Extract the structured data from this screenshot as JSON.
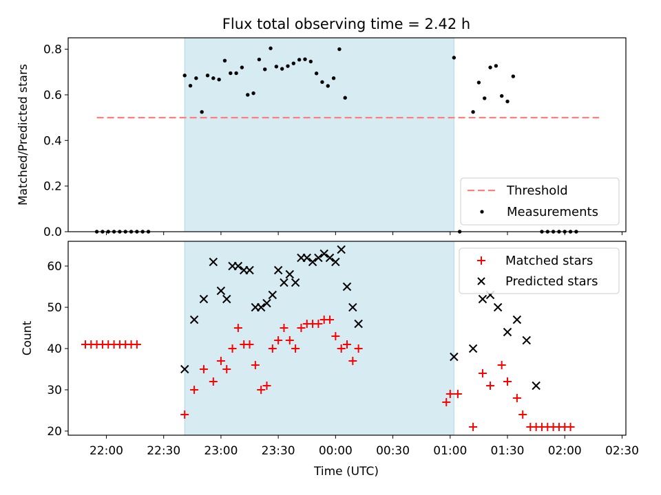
{
  "chart_data": [
    {
      "type": "scatter",
      "title": "Flux total observing time = 2.42 h",
      "ylabel": "Matched/Predicted stars",
      "xlabel": "",
      "ylim": [
        0,
        0.85
      ],
      "yticks": [
        0.0,
        0.2,
        0.4,
        0.6,
        0.8
      ],
      "ytick_labels": [
        "0.0",
        "0.2",
        "0.4",
        "0.6",
        "0.8"
      ],
      "legend": "bottom-right",
      "grid": false,
      "threshold": {
        "name": "Threshold",
        "value": 0.5,
        "x_start": "21:55",
        "x_end": "02:18",
        "color": "#ff7f7f"
      },
      "shaded_span": {
        "start": "22:41",
        "end": "01:02",
        "color": "#add8e6"
      },
      "series": [
        {
          "name": "Measurements",
          "color": "#000000",
          "points": [
            [
              "21:55",
              0.0
            ],
            [
              "21:58",
              0.0
            ],
            [
              "22:01",
              0.0
            ],
            [
              "22:04",
              0.0
            ],
            [
              "22:07",
              0.0
            ],
            [
              "22:10",
              0.0
            ],
            [
              "22:13",
              0.0
            ],
            [
              "22:16",
              0.0
            ],
            [
              "22:19",
              0.0
            ],
            [
              "22:22",
              0.0
            ],
            [
              "22:41",
              0.685
            ],
            [
              "22:44",
              0.64
            ],
            [
              "22:47",
              0.673
            ],
            [
              "22:50",
              0.525
            ],
            [
              "22:53",
              0.685
            ],
            [
              "22:56",
              0.673
            ],
            [
              "22:59",
              0.667
            ],
            [
              "23:02",
              0.75
            ],
            [
              "23:05",
              0.695
            ],
            [
              "23:08",
              0.695
            ],
            [
              "23:11",
              0.72
            ],
            [
              "23:14",
              0.6
            ],
            [
              "23:17",
              0.607
            ],
            [
              "23:20",
              0.755
            ],
            [
              "23:23",
              0.712
            ],
            [
              "23:26",
              0.804
            ],
            [
              "23:29",
              0.724
            ],
            [
              "23:32",
              0.714
            ],
            [
              "23:35",
              0.726
            ],
            [
              "23:38",
              0.738
            ],
            [
              "23:41",
              0.754
            ],
            [
              "23:44",
              0.756
            ],
            [
              "23:47",
              0.746
            ],
            [
              "23:50",
              0.694
            ],
            [
              "23:53",
              0.656
            ],
            [
              "23:56",
              0.639
            ],
            [
              "23:59",
              0.673
            ],
            [
              "00:02",
              0.8
            ],
            [
              "00:05",
              0.587
            ],
            [
              "01:02",
              0.763
            ],
            [
              "01:05",
              0.0
            ],
            [
              "01:12",
              0.525
            ],
            [
              "01:15",
              0.654
            ],
            [
              "01:18",
              0.585
            ],
            [
              "01:21",
              0.72
            ],
            [
              "01:24",
              0.727
            ],
            [
              "01:27",
              0.595
            ],
            [
              "01:30",
              0.571
            ],
            [
              "01:33",
              0.681
            ],
            [
              "01:48",
              0.0
            ],
            [
              "01:51",
              0.0
            ],
            [
              "01:54",
              0.0
            ],
            [
              "01:57",
              0.0
            ],
            [
              "02:00",
              0.0
            ],
            [
              "02:03",
              0.0
            ],
            [
              "02:06",
              0.0
            ]
          ]
        }
      ]
    },
    {
      "type": "scatter",
      "title": "",
      "xlabel": "Time (UTC)",
      "ylabel": "Count",
      "ylim": [
        19,
        66
      ],
      "yticks": [
        20,
        30,
        40,
        50,
        60
      ],
      "ytick_labels": [
        "20",
        "30",
        "40",
        "50",
        "60"
      ],
      "xlim": [
        "21:40",
        "02:32"
      ],
      "xticks": [
        "22:00",
        "22:30",
        "23:00",
        "23:30",
        "00:00",
        "00:30",
        "01:00",
        "01:30",
        "02:00",
        "02:30"
      ],
      "xtick_labels": [
        "22:00",
        "22:30",
        "23:00",
        "23:30",
        "00:00",
        "00:30",
        "01:00",
        "01:30",
        "02:00",
        "02:30"
      ],
      "legend": "top-right",
      "grid": false,
      "shaded_span": {
        "start": "22:41",
        "end": "01:02",
        "color": "#add8e6"
      },
      "series": [
        {
          "name": "Matched stars",
          "color": "#ff0000",
          "marker": "plus",
          "points": [
            [
              "21:49",
              41
            ],
            [
              "21:52",
              41
            ],
            [
              "21:55",
              41
            ],
            [
              "21:58",
              41
            ],
            [
              "22:01",
              41
            ],
            [
              "22:04",
              41
            ],
            [
              "22:07",
              41
            ],
            [
              "22:10",
              41
            ],
            [
              "22:13",
              41
            ],
            [
              "22:16",
              41
            ],
            [
              "22:41",
              24
            ],
            [
              "22:46",
              30
            ],
            [
              "22:51",
              35
            ],
            [
              "22:56",
              32
            ],
            [
              "23:00",
              37
            ],
            [
              "23:03",
              35
            ],
            [
              "23:06",
              40
            ],
            [
              "23:09",
              45
            ],
            [
              "23:12",
              41
            ],
            [
              "23:15",
              41
            ],
            [
              "23:18",
              36
            ],
            [
              "23:21",
              30
            ],
            [
              "23:24",
              31
            ],
            [
              "23:27",
              40
            ],
            [
              "23:30",
              42
            ],
            [
              "23:33",
              45
            ],
            [
              "23:36",
              42
            ],
            [
              "23:39",
              40
            ],
            [
              "23:42",
              45
            ],
            [
              "23:45",
              46
            ],
            [
              "23:48",
              46
            ],
            [
              "23:51",
              46
            ],
            [
              "23:54",
              47
            ],
            [
              "23:57",
              47
            ],
            [
              "00:00",
              43
            ],
            [
              "00:03",
              40
            ],
            [
              "00:06",
              41
            ],
            [
              "00:09",
              37
            ],
            [
              "00:12",
              40
            ],
            [
              "00:58",
              27
            ],
            [
              "01:00",
              29
            ],
            [
              "01:04",
              29
            ],
            [
              "01:12",
              21
            ],
            [
              "01:17",
              34
            ],
            [
              "01:21",
              31
            ],
            [
              "01:27",
              36
            ],
            [
              "01:30",
              32
            ],
            [
              "01:35",
              28
            ],
            [
              "01:38",
              24
            ],
            [
              "01:42",
              21
            ],
            [
              "01:45",
              21
            ],
            [
              "01:48",
              21
            ],
            [
              "01:51",
              21
            ],
            [
              "01:54",
              21
            ],
            [
              "01:57",
              21
            ],
            [
              "02:00",
              21
            ],
            [
              "02:03",
              21
            ]
          ]
        },
        {
          "name": "Predicted stars",
          "color": "#000000",
          "marker": "x",
          "points": [
            [
              "22:41",
              35
            ],
            [
              "22:46",
              47
            ],
            [
              "22:51",
              52
            ],
            [
              "22:56",
              61
            ],
            [
              "23:00",
              54
            ],
            [
              "23:03",
              52
            ],
            [
              "23:06",
              60
            ],
            [
              "23:09",
              60
            ],
            [
              "23:12",
              59
            ],
            [
              "23:15",
              59
            ],
            [
              "23:18",
              50
            ],
            [
              "23:21",
              50
            ],
            [
              "23:24",
              51
            ],
            [
              "23:27",
              53
            ],
            [
              "23:30",
              59
            ],
            [
              "23:33",
              56
            ],
            [
              "23:36",
              58
            ],
            [
              "23:39",
              56
            ],
            [
              "23:42",
              62
            ],
            [
              "23:45",
              62
            ],
            [
              "23:48",
              61
            ],
            [
              "23:51",
              62
            ],
            [
              "23:54",
              63
            ],
            [
              "23:57",
              62
            ],
            [
              "00:00",
              61
            ],
            [
              "00:03",
              64
            ],
            [
              "00:06",
              55
            ],
            [
              "00:09",
              50
            ],
            [
              "00:12",
              46
            ],
            [
              "01:02",
              38
            ],
            [
              "01:12",
              40
            ],
            [
              "01:17",
              52
            ],
            [
              "01:21",
              53
            ],
            [
              "01:25",
              50
            ],
            [
              "01:30",
              44
            ],
            [
              "01:35",
              47
            ],
            [
              "01:40",
              42
            ],
            [
              "01:45",
              31
            ]
          ]
        }
      ]
    }
  ]
}
